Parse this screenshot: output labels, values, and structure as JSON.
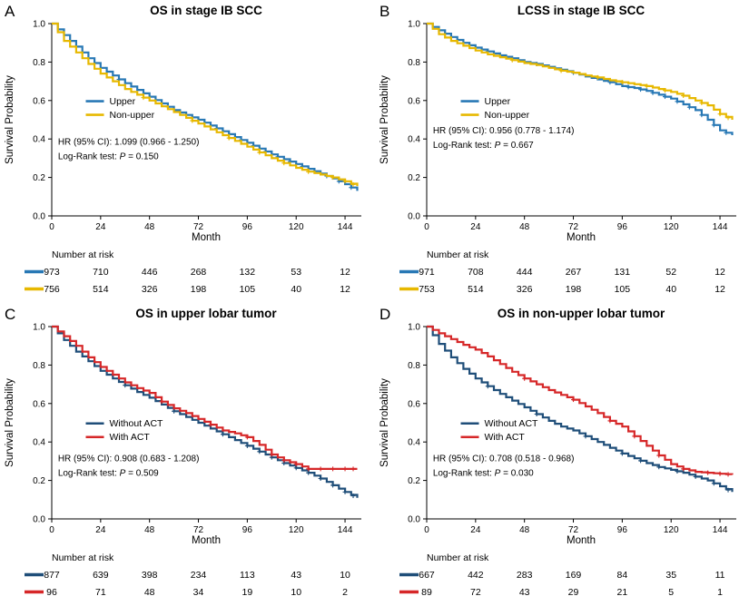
{
  "colors": {
    "upper_blue": "#2878B5",
    "non_upper_yellow": "#E7B800",
    "without_act_navy": "#1F4E79",
    "with_act_red": "#D62728",
    "axis": "#000000",
    "background": "#FFFFFF"
  },
  "chart_data": [
    {
      "type": "line",
      "subtype": "kaplan-meier-step",
      "label": "A",
      "title": "OS in stage IB SCC",
      "xlabel": "Month",
      "ylabel": "Survival Probability",
      "xlim": [
        0,
        152
      ],
      "ylim": [
        0,
        1
      ],
      "xticks": [
        0,
        24,
        48,
        72,
        96,
        120,
        144
      ],
      "yticks": [
        0,
        0.2,
        0.4,
        0.6,
        0.8,
        1.0
      ],
      "grid": false,
      "legend_position": "inside-left-middle",
      "legend_pos": {
        "fx": 0.11,
        "fy": 0.42
      },
      "annot_pos": {
        "fx": 0.02,
        "fy": 0.63
      },
      "stats": {
        "hr": "HR (95% CI): 1.099 (0.966 - 1.250)",
        "logrank_prefix": "Log-Rank test: ",
        "p_symbol": "P",
        "logrank_rest": " = 0.150"
      },
      "series": [
        {
          "name": "Upper",
          "color": "#2878B5",
          "x": [
            0,
            6,
            12,
            18,
            24,
            30,
            36,
            42,
            48,
            54,
            60,
            66,
            72,
            78,
            84,
            90,
            96,
            102,
            108,
            114,
            120,
            126,
            132,
            138,
            144,
            150
          ],
          "y": [
            1.0,
            0.94,
            0.88,
            0.82,
            0.77,
            0.73,
            0.69,
            0.655,
            0.62,
            0.585,
            0.55,
            0.525,
            0.5,
            0.47,
            0.44,
            0.41,
            0.38,
            0.35,
            0.32,
            0.295,
            0.27,
            0.245,
            0.22,
            0.195,
            0.165,
            0.13
          ],
          "censor_x": [
            33,
            57,
            81,
            93,
            99,
            105,
            111,
            117,
            123,
            129,
            135,
            141,
            147
          ]
        },
        {
          "name": "Non-upper",
          "color": "#E7B800",
          "x": [
            0,
            6,
            12,
            18,
            24,
            30,
            36,
            42,
            48,
            54,
            60,
            66,
            72,
            78,
            84,
            90,
            96,
            102,
            108,
            114,
            120,
            126,
            132,
            138,
            144,
            150
          ],
          "y": [
            1.0,
            0.91,
            0.85,
            0.79,
            0.74,
            0.7,
            0.66,
            0.63,
            0.6,
            0.57,
            0.54,
            0.51,
            0.48,
            0.45,
            0.42,
            0.39,
            0.36,
            0.33,
            0.3,
            0.275,
            0.25,
            0.23,
            0.215,
            0.2,
            0.18,
            0.155
          ],
          "censor_x": [
            45,
            69,
            87,
            102,
            114,
            126,
            138,
            144,
            148
          ]
        }
      ],
      "risk_table": {
        "label": "Number at risk",
        "time_points": [
          0,
          24,
          48,
          72,
          96,
          120,
          144
        ],
        "rows": [
          {
            "name": "Upper",
            "color": "#2878B5",
            "values": [
              973,
              710,
              446,
              268,
              132,
              53,
              12
            ]
          },
          {
            "name": "Non-upper",
            "color": "#E7B800",
            "values": [
              756,
              514,
              326,
              198,
              105,
              40,
              12
            ]
          }
        ]
      }
    },
    {
      "type": "line",
      "subtype": "kaplan-meier-step",
      "label": "B",
      "title": "LCSS in stage IB SCC",
      "xlabel": "Month",
      "ylabel": "Survival Probability",
      "xlim": [
        0,
        152
      ],
      "ylim": [
        0,
        1
      ],
      "xticks": [
        0,
        24,
        48,
        72,
        96,
        120,
        144
      ],
      "yticks": [
        0,
        0.2,
        0.4,
        0.6,
        0.8,
        1.0
      ],
      "grid": false,
      "legend_position": "inside-left-middle",
      "legend_pos": {
        "fx": 0.11,
        "fy": 0.42
      },
      "annot_pos": {
        "fx": 0.02,
        "fy": 0.57
      },
      "stats": {
        "hr": "HR (95% CI): 0.956 (0.778 - 1.174)",
        "logrank_prefix": "Log-Rank test: ",
        "p_symbol": "P",
        "logrank_rest": " = 0.667"
      },
      "series": [
        {
          "name": "Upper",
          "color": "#2878B5",
          "x": [
            0,
            6,
            12,
            18,
            24,
            30,
            36,
            42,
            48,
            54,
            60,
            66,
            72,
            78,
            84,
            90,
            96,
            102,
            108,
            114,
            120,
            126,
            132,
            138,
            144,
            150
          ],
          "y": [
            1.0,
            0.965,
            0.93,
            0.9,
            0.875,
            0.855,
            0.835,
            0.82,
            0.8,
            0.79,
            0.775,
            0.76,
            0.745,
            0.725,
            0.71,
            0.695,
            0.675,
            0.665,
            0.65,
            0.63,
            0.61,
            0.58,
            0.55,
            0.5,
            0.445,
            0.42
          ],
          "censor_x": [
            30,
            54,
            72,
            90,
            99,
            105,
            111,
            117,
            123,
            129,
            135,
            141,
            147
          ]
        },
        {
          "name": "Non-upper",
          "color": "#E7B800",
          "x": [
            0,
            6,
            12,
            18,
            24,
            30,
            36,
            42,
            48,
            54,
            60,
            66,
            72,
            78,
            84,
            90,
            96,
            102,
            108,
            114,
            120,
            126,
            132,
            138,
            144,
            150
          ],
          "y": [
            1.0,
            0.945,
            0.91,
            0.885,
            0.86,
            0.84,
            0.825,
            0.81,
            0.795,
            0.785,
            0.77,
            0.755,
            0.745,
            0.73,
            0.72,
            0.705,
            0.695,
            0.685,
            0.675,
            0.66,
            0.645,
            0.625,
            0.6,
            0.575,
            0.53,
            0.5
          ],
          "censor_x": [
            42,
            66,
            84,
            96,
            108,
            117,
            126,
            135,
            144,
            148
          ]
        }
      ],
      "risk_table": {
        "label": "Number at risk",
        "time_points": [
          0,
          24,
          48,
          72,
          96,
          120,
          144
        ],
        "rows": [
          {
            "name": "Upper",
            "color": "#2878B5",
            "values": [
              971,
              708,
              444,
              267,
              131,
              52,
              12
            ]
          },
          {
            "name": "Non-upper",
            "color": "#E7B800",
            "values": [
              753,
              514,
              326,
              198,
              105,
              40,
              12
            ]
          }
        ]
      }
    },
    {
      "type": "line",
      "subtype": "kaplan-meier-step",
      "label": "C",
      "title": "OS in upper lobar tumor",
      "xlabel": "Month",
      "ylabel": "Survival Probability",
      "xlim": [
        0,
        152
      ],
      "ylim": [
        0,
        1
      ],
      "xticks": [
        0,
        24,
        48,
        72,
        96,
        120,
        144
      ],
      "yticks": [
        0,
        0.2,
        0.4,
        0.6,
        0.8,
        1.0
      ],
      "grid": false,
      "legend_position": "inside-left-middle",
      "legend_pos": {
        "fx": 0.11,
        "fy": 0.52
      },
      "annot_pos": {
        "fx": 0.02,
        "fy": 0.7
      },
      "stats": {
        "hr": "HR (95% CI): 0.908 (0.683 - 1.208)",
        "logrank_prefix": "Log-Rank test: ",
        "p_symbol": "P",
        "logrank_rest": " = 0.509"
      },
      "series": [
        {
          "name": "Without ACT",
          "color": "#1F4E79",
          "x": [
            0,
            6,
            12,
            18,
            24,
            30,
            36,
            42,
            48,
            54,
            60,
            66,
            72,
            78,
            84,
            90,
            96,
            102,
            108,
            114,
            120,
            126,
            132,
            138,
            144,
            150
          ],
          "y": [
            1.0,
            0.93,
            0.87,
            0.82,
            0.77,
            0.73,
            0.695,
            0.66,
            0.63,
            0.595,
            0.56,
            0.53,
            0.5,
            0.47,
            0.44,
            0.41,
            0.38,
            0.35,
            0.32,
            0.29,
            0.265,
            0.24,
            0.21,
            0.175,
            0.14,
            0.11
          ],
          "censor_x": [
            36,
            60,
            84,
            96,
            102,
            108,
            114,
            120,
            126,
            132,
            138,
            144,
            148
          ]
        },
        {
          "name": "With ACT",
          "color": "#D62728",
          "x": [
            0,
            6,
            12,
            18,
            24,
            30,
            36,
            42,
            48,
            54,
            60,
            66,
            72,
            78,
            84,
            90,
            96,
            102,
            108,
            114,
            120,
            126,
            132,
            138,
            144,
            150
          ],
          "y": [
            1.0,
            0.95,
            0.9,
            0.84,
            0.79,
            0.75,
            0.71,
            0.68,
            0.655,
            0.61,
            0.575,
            0.55,
            0.52,
            0.49,
            0.46,
            0.445,
            0.425,
            0.385,
            0.335,
            0.305,
            0.285,
            0.26,
            0.26,
            0.26,
            0.26,
            0.26
          ],
          "censor_x": [
            54,
            78,
            96,
            108,
            114,
            120,
            126,
            132,
            138,
            144,
            148
          ]
        }
      ],
      "risk_table": {
        "label": "Number at risk",
        "time_points": [
          0,
          24,
          48,
          72,
          96,
          120,
          144
        ],
        "rows": [
          {
            "name": "Without ACT",
            "color": "#1F4E79",
            "values": [
              877,
              639,
              398,
              234,
              113,
              43,
              10
            ]
          },
          {
            "name": "With ACT",
            "color": "#D62728",
            "values": [
              96,
              71,
              48,
              34,
              19,
              10,
              2
            ]
          }
        ]
      }
    },
    {
      "type": "line",
      "subtype": "kaplan-meier-step",
      "label": "D",
      "title": "OS in non-upper lobar tumor",
      "xlabel": "Month",
      "ylabel": "Survival Probability",
      "xlim": [
        0,
        152
      ],
      "ylim": [
        0,
        1
      ],
      "xticks": [
        0,
        24,
        48,
        72,
        96,
        120,
        144
      ],
      "yticks": [
        0,
        0.2,
        0.4,
        0.6,
        0.8,
        1.0
      ],
      "grid": false,
      "legend_position": "inside-left-middle",
      "legend_pos": {
        "fx": 0.11,
        "fy": 0.52
      },
      "annot_pos": {
        "fx": 0.02,
        "fy": 0.7
      },
      "stats": {
        "hr": "HR (95% CI): 0.708 (0.518 - 0.968)",
        "logrank_prefix": "Log-Rank test: ",
        "p_symbol": "P",
        "logrank_rest": " = 0.030"
      },
      "series": [
        {
          "name": "Without ACT",
          "color": "#1F4E79",
          "x": [
            0,
            6,
            12,
            18,
            24,
            30,
            36,
            42,
            48,
            54,
            60,
            66,
            72,
            78,
            84,
            90,
            96,
            102,
            108,
            114,
            120,
            126,
            132,
            138,
            144,
            150
          ],
          "y": [
            1.0,
            0.91,
            0.84,
            0.78,
            0.73,
            0.69,
            0.65,
            0.615,
            0.58,
            0.545,
            0.51,
            0.48,
            0.46,
            0.43,
            0.4,
            0.37,
            0.34,
            0.315,
            0.29,
            0.27,
            0.255,
            0.24,
            0.22,
            0.2,
            0.17,
            0.14
          ],
          "censor_x": [
            30,
            54,
            78,
            96,
            105,
            114,
            123,
            132,
            141,
            148
          ]
        },
        {
          "name": "With ACT",
          "color": "#D62728",
          "x": [
            0,
            6,
            12,
            18,
            24,
            30,
            36,
            42,
            48,
            54,
            60,
            66,
            72,
            78,
            84,
            90,
            96,
            102,
            108,
            114,
            120,
            126,
            132,
            138,
            144,
            150
          ],
          "y": [
            1.0,
            0.965,
            0.935,
            0.905,
            0.88,
            0.845,
            0.805,
            0.765,
            0.73,
            0.7,
            0.67,
            0.645,
            0.62,
            0.585,
            0.55,
            0.51,
            0.48,
            0.43,
            0.38,
            0.33,
            0.285,
            0.26,
            0.245,
            0.24,
            0.235,
            0.23
          ],
          "censor_x": [
            48,
            72,
            90,
            102,
            114,
            126,
            138,
            144,
            148
          ]
        }
      ],
      "risk_table": {
        "label": "Number at risk",
        "time_points": [
          0,
          24,
          48,
          72,
          96,
          120,
          144
        ],
        "rows": [
          {
            "name": "Without ACT",
            "color": "#1F4E79",
            "values": [
              667,
              442,
              283,
              169,
              84,
              35,
              11
            ]
          },
          {
            "name": "With ACT",
            "color": "#D62728",
            "values": [
              89,
              72,
              43,
              29,
              21,
              5,
              1
            ]
          }
        ]
      }
    }
  ]
}
